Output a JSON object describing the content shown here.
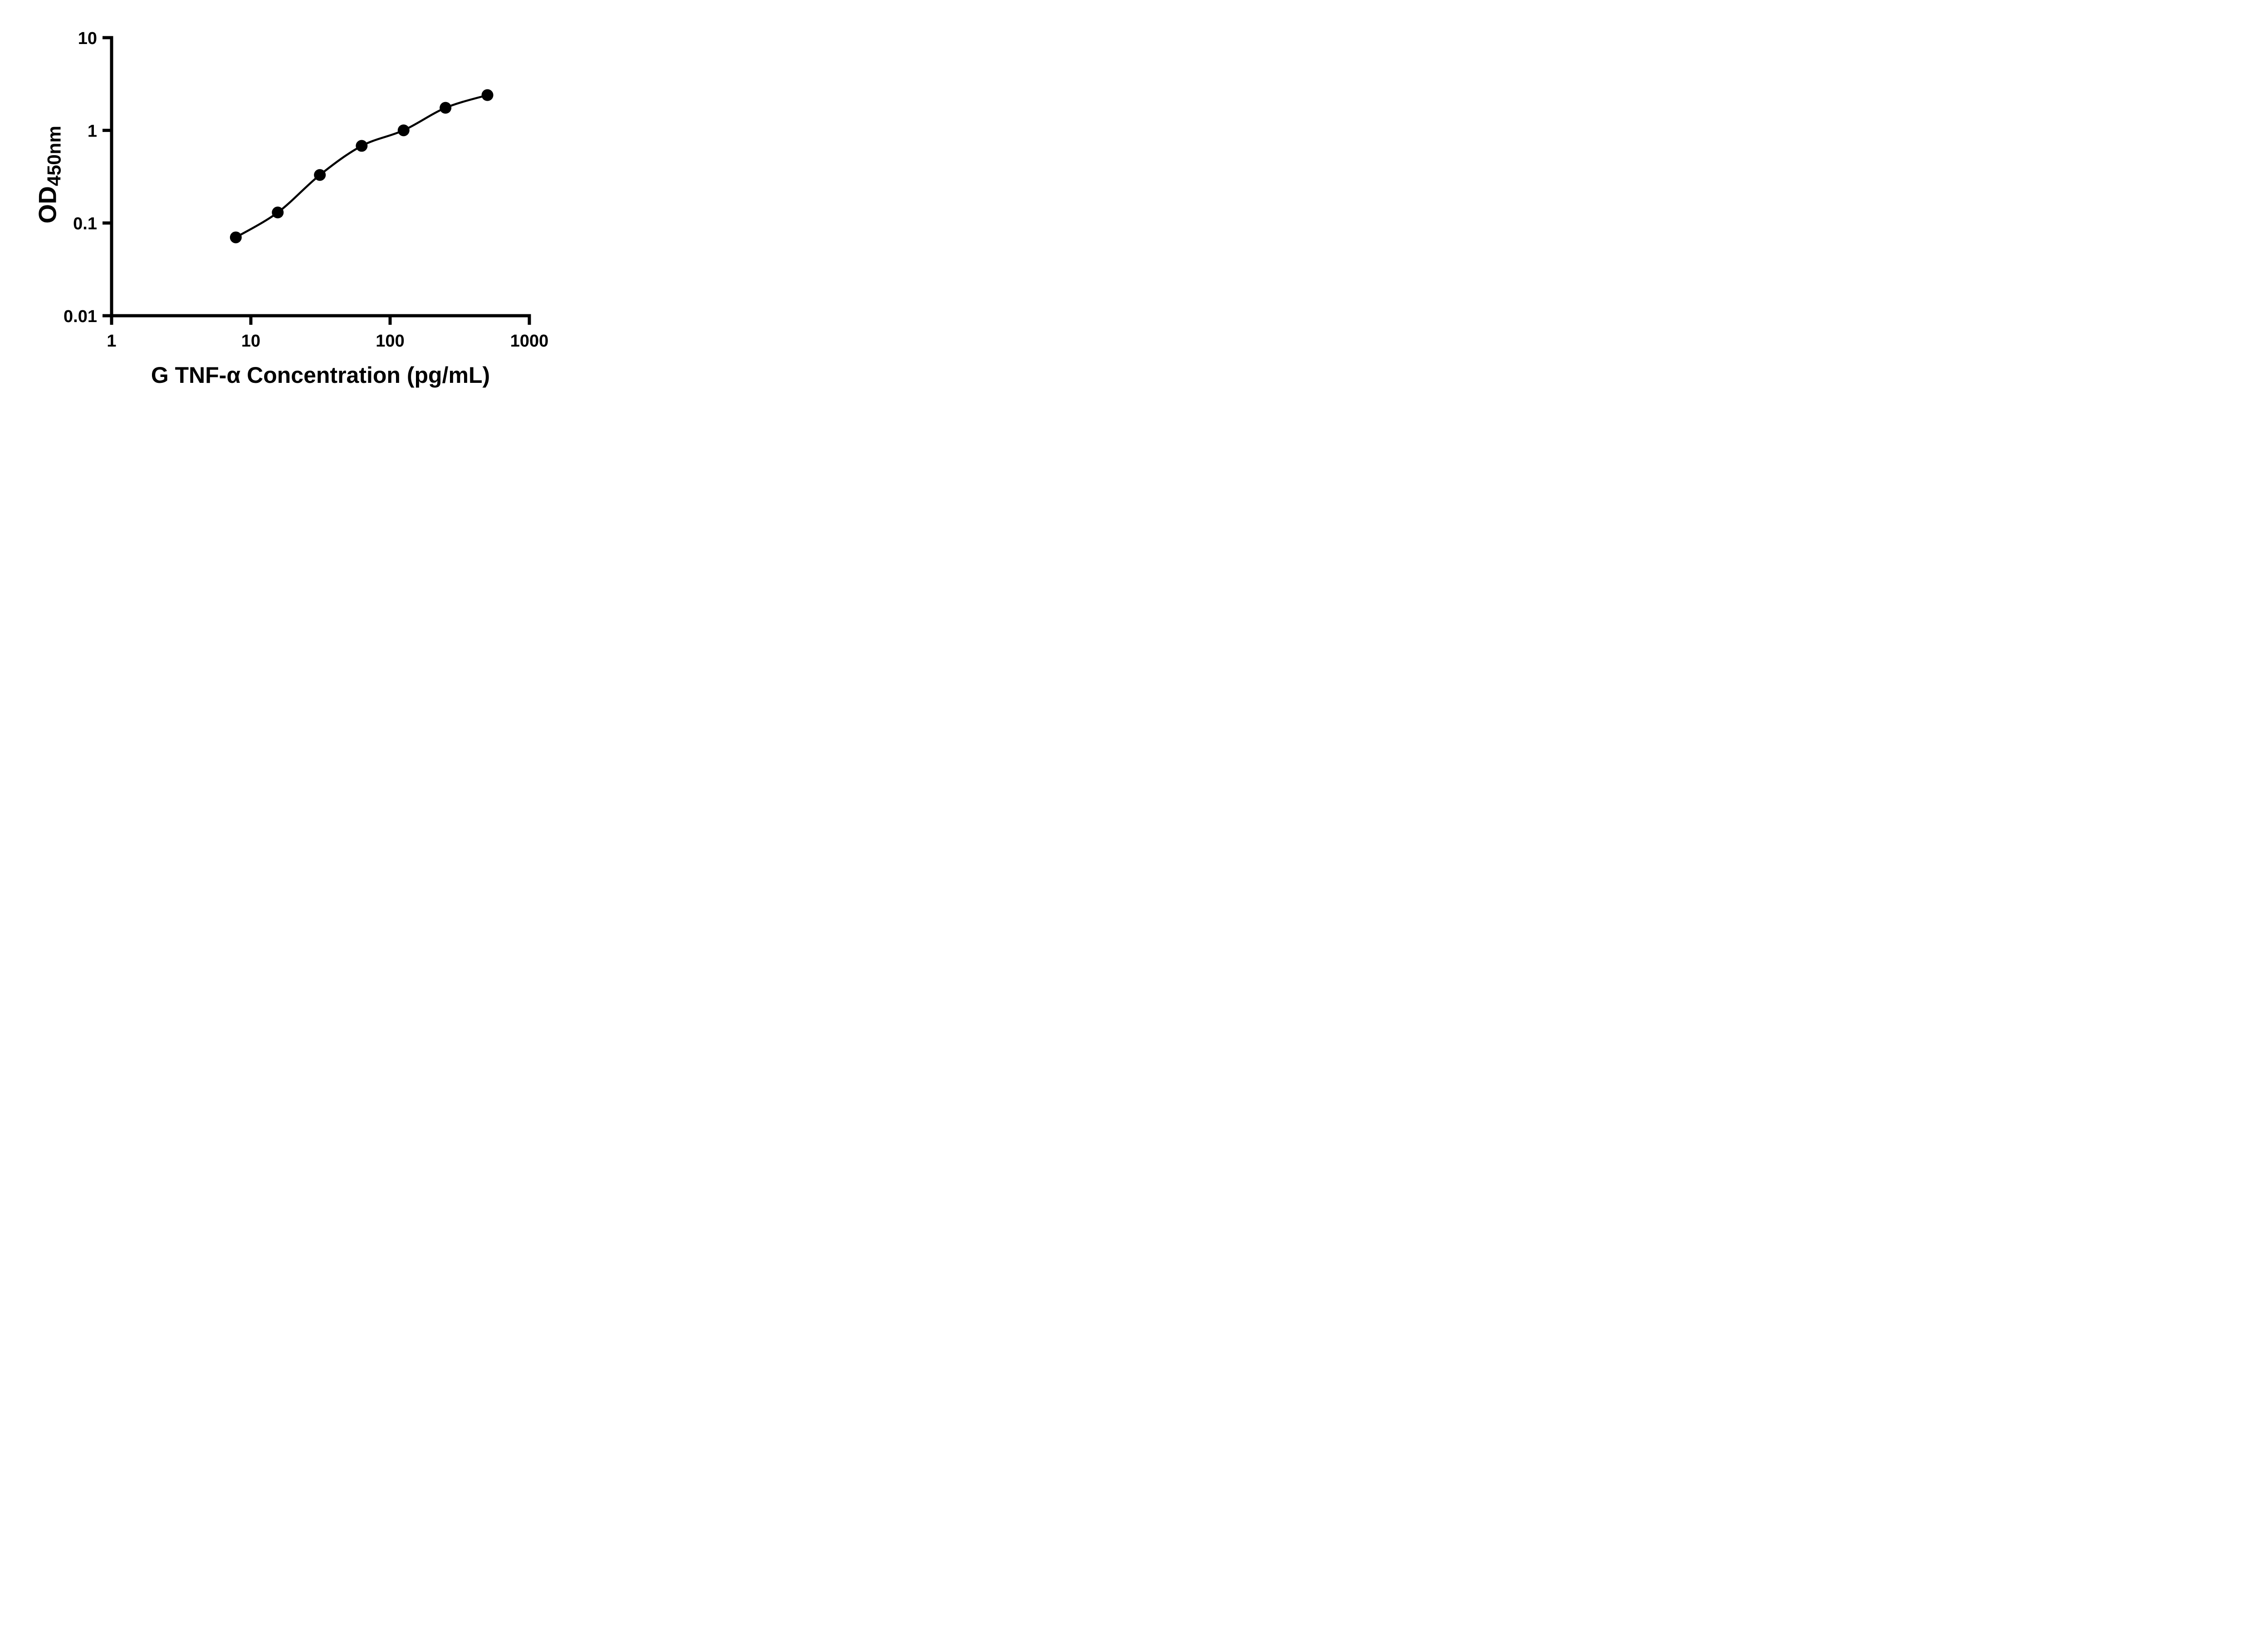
{
  "figure": {
    "background": "#ffffff",
    "ink": "#000000"
  },
  "chart_data": {
    "type": "scatter",
    "title": "",
    "xlabel": "G TNF-α Concentration (pg/mL)",
    "ylabel_main": "OD",
    "ylabel_sub": "450nm",
    "xscale": "log",
    "yscale": "log",
    "xlim": [
      1,
      1000
    ],
    "ylim": [
      0.01,
      10
    ],
    "x_ticks": [
      1,
      10,
      100,
      1000
    ],
    "x_tick_labels": [
      "1",
      "10",
      "100",
      "1000"
    ],
    "y_ticks": [
      0.01,
      0.1,
      1,
      10
    ],
    "y_tick_labels": [
      "0.01",
      "0.1",
      "1",
      "10"
    ],
    "grid": false,
    "legend": null,
    "marker": "filled-circle",
    "marker_color": "#000000",
    "curve_color": "#000000",
    "has_fit_curve": true,
    "points": [
      {
        "x": 7.8,
        "y": 0.07
      },
      {
        "x": 15.6,
        "y": 0.13
      },
      {
        "x": 31.3,
        "y": 0.33
      },
      {
        "x": 62.5,
        "y": 0.68
      },
      {
        "x": 125,
        "y": 1.0
      },
      {
        "x": 250,
        "y": 1.75
      },
      {
        "x": 500,
        "y": 2.4
      }
    ]
  }
}
